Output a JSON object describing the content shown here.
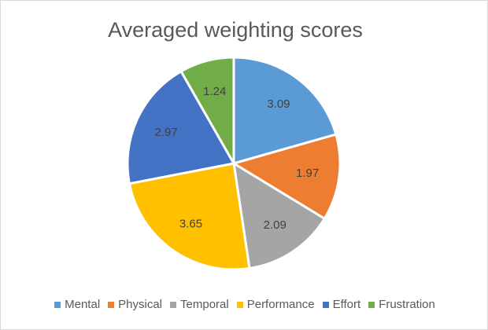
{
  "chart_data": {
    "type": "pie",
    "title": "Averaged weighting scores",
    "categories": [
      "Mental",
      "Physical",
      "Temporal",
      "Performance",
      "Effort",
      "Frustration"
    ],
    "values": [
      3.09,
      1.97,
      2.09,
      3.65,
      2.97,
      1.24
    ],
    "data_labels": [
      "3.09",
      "1.97",
      "2.09",
      "3.65",
      "2.97",
      "1.24"
    ],
    "colors": [
      "#5b9bd5",
      "#ed7d31",
      "#a5a5a5",
      "#ffc000",
      "#4472c4",
      "#70ad47"
    ],
    "legend_position": "bottom",
    "start_angle": "top, clockwise"
  }
}
